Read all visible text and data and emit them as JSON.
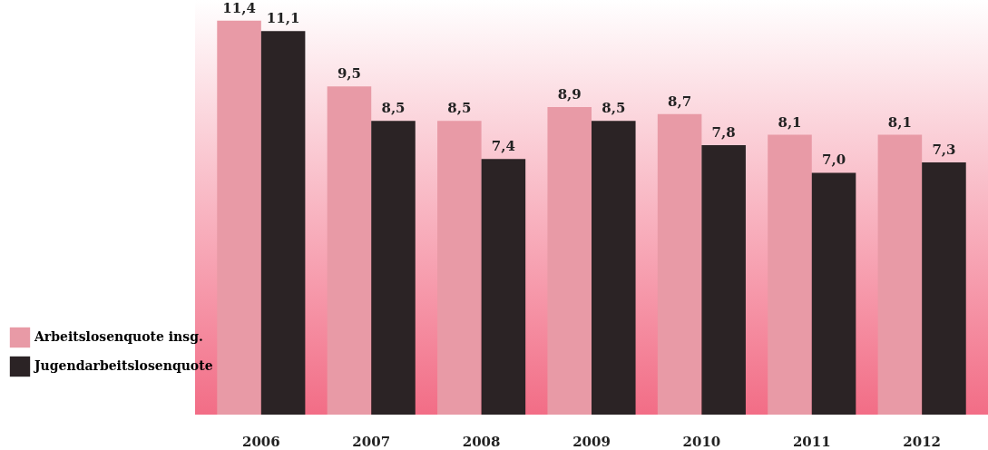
{
  "chart_data": {
    "type": "bar",
    "categories": [
      "2006",
      "2007",
      "2008",
      "2009",
      "2010",
      "2011",
      "2012"
    ],
    "series": [
      {
        "name": "Arbeitslosenquote insg.",
        "color": "#e89aa6",
        "values": [
          11.4,
          9.5,
          8.5,
          8.9,
          8.7,
          8.1,
          8.1
        ],
        "value_labels": [
          "11,4",
          "9,5",
          "8,5",
          "8,9",
          "8,7",
          "8,1",
          "8,1"
        ]
      },
      {
        "name": "Jugendarbeitslosenquote",
        "color": "#2b2325",
        "values": [
          11.1,
          8.5,
          7.4,
          8.5,
          7.8,
          7.0,
          7.3
        ],
        "value_labels": [
          "11,1",
          "8,5",
          "7,4",
          "8,5",
          "7,8",
          "7,0",
          "7,3"
        ]
      }
    ],
    "legend": "left",
    "grid": false
  }
}
